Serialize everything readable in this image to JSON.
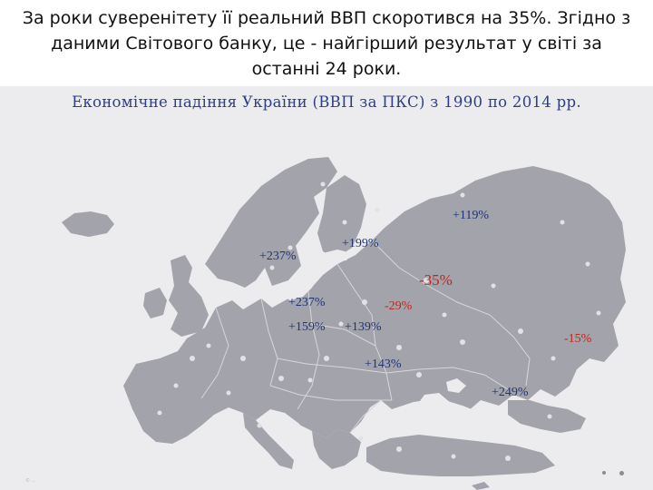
{
  "headline": "За роки суверенітету її реальний ВВП скоротився на 35%. Згідно з даними Світового банку, це - найгірший результат у світі за останні 24 роки.",
  "map": {
    "title": "Економічне падіння України (ВВП за ПКС) з 1990 по 2014 рр.",
    "footnote": "© ...",
    "colors": {
      "map_background": "#ececee",
      "land": "#a3a3ab",
      "sea_title": "#2c3f86",
      "positive": "#1f3378",
      "negative": "#c0251b"
    },
    "labels": [
      {
        "id": "russia",
        "text": "+119%",
        "sign": "positive"
      },
      {
        "id": "scandinavia-south",
        "text": "+237%",
        "sign": "positive"
      },
      {
        "id": "baltics",
        "text": "+199%",
        "sign": "positive"
      },
      {
        "id": "ukraine",
        "text": "-35%",
        "sign": "negative"
      },
      {
        "id": "poland",
        "text": "+237%",
        "sign": "positive"
      },
      {
        "id": "moldova",
        "text": "-29%",
        "sign": "negative"
      },
      {
        "id": "hungary",
        "text": "+159%",
        "sign": "positive"
      },
      {
        "id": "romania",
        "text": "+139%",
        "sign": "positive"
      },
      {
        "id": "georgia",
        "text": "-15%",
        "sign": "negative"
      },
      {
        "id": "bulgaria",
        "text": "+143%",
        "sign": "positive"
      },
      {
        "id": "turkey",
        "text": "+249%",
        "sign": "positive"
      }
    ]
  }
}
